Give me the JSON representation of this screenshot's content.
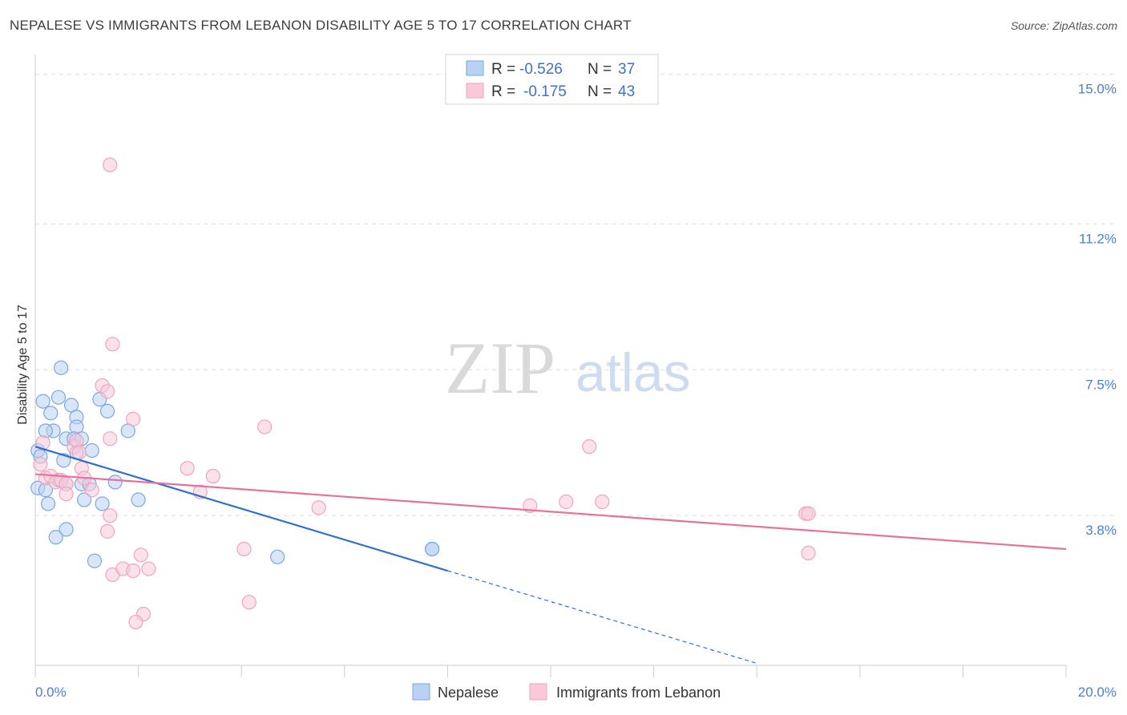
{
  "title": "NEPALESE VS IMMIGRANTS FROM LEBANON DISABILITY AGE 5 TO 17 CORRELATION CHART",
  "source": "Source: ZipAtlas.com",
  "watermark": {
    "zip": "ZIP",
    "atlas": "atlas"
  },
  "chart_data": {
    "type": "scatter",
    "title": "NEPALESE VS IMMIGRANTS FROM LEBANON DISABILITY AGE 5 TO 17 CORRELATION CHART",
    "xlabel": "",
    "ylabel": "Disability Age 5 to 17",
    "xlim": [
      0,
      20
    ],
    "ylim": [
      0,
      15.5
    ],
    "x_tick_labels": [
      "0.0%",
      "20.0%"
    ],
    "y_ticks": [
      3.8,
      7.5,
      11.2,
      15.0
    ],
    "y_tick_labels": [
      "3.8%",
      "7.5%",
      "11.2%",
      "15.0%"
    ],
    "grid": true,
    "legend": {
      "position": "top-center",
      "rows": [
        {
          "r_label": "R =",
          "r_value": "-0.526",
          "n_label": "N =",
          "n_value": "37"
        },
        {
          "r_label": "R =",
          "r_value": "-0.175",
          "n_label": "N =",
          "n_value": "43"
        }
      ]
    },
    "series": [
      {
        "name": "Nepalese",
        "color": "#7aa7e6",
        "fill": "#b9d1f2",
        "line_color": "#2f6fd0",
        "trend": {
          "x0": 0.0,
          "y0": 5.55,
          "x1": 8.0,
          "y1": 2.4,
          "dash_to_x": 14.0,
          "dash_to_y": 0.05
        },
        "points": [
          [
            0.05,
            5.45
          ],
          [
            0.1,
            5.3
          ],
          [
            0.05,
            4.5
          ],
          [
            0.2,
            4.45
          ],
          [
            0.25,
            4.1
          ],
          [
            0.15,
            6.7
          ],
          [
            0.3,
            6.4
          ],
          [
            0.35,
            5.95
          ],
          [
            0.2,
            5.95
          ],
          [
            0.45,
            6.8
          ],
          [
            0.5,
            7.55
          ],
          [
            0.7,
            6.6
          ],
          [
            0.8,
            6.3
          ],
          [
            0.8,
            6.05
          ],
          [
            0.6,
            5.75
          ],
          [
            0.75,
            5.75
          ],
          [
            0.9,
            5.75
          ],
          [
            0.55,
            5.2
          ],
          [
            0.8,
            5.4
          ],
          [
            0.45,
            4.7
          ],
          [
            0.6,
            4.6
          ],
          [
            0.9,
            4.6
          ],
          [
            1.05,
            4.6
          ],
          [
            1.1,
            5.45
          ],
          [
            0.95,
            4.2
          ],
          [
            1.3,
            4.1
          ],
          [
            1.25,
            6.75
          ],
          [
            1.4,
            6.45
          ],
          [
            1.8,
            5.95
          ],
          [
            1.55,
            4.65
          ],
          [
            2.0,
            4.2
          ],
          [
            0.6,
            3.45
          ],
          [
            0.4,
            3.25
          ],
          [
            1.15,
            2.65
          ],
          [
            4.7,
            2.75
          ],
          [
            7.7,
            2.95
          ],
          [
            7.7,
            2.95
          ]
        ]
      },
      {
        "name": "Immigrants from Lebanon",
        "color": "#f2a3bd",
        "fill": "#f8cad9",
        "line_color": "#e8709a",
        "trend": {
          "x0": 0.0,
          "y0": 4.85,
          "x1": 20.0,
          "y1": 2.95
        },
        "points": [
          [
            0.15,
            5.65
          ],
          [
            0.1,
            5.1
          ],
          [
            0.2,
            4.75
          ],
          [
            0.3,
            4.8
          ],
          [
            0.4,
            4.65
          ],
          [
            0.5,
            4.7
          ],
          [
            0.6,
            4.6
          ],
          [
            0.6,
            4.35
          ],
          [
            0.75,
            5.55
          ],
          [
            0.8,
            5.7
          ],
          [
            0.85,
            5.4
          ],
          [
            0.9,
            5.0
          ],
          [
            0.95,
            4.75
          ],
          [
            1.1,
            4.45
          ],
          [
            1.3,
            7.1
          ],
          [
            1.4,
            6.95
          ],
          [
            1.45,
            12.7
          ],
          [
            1.5,
            8.15
          ],
          [
            1.45,
            5.75
          ],
          [
            1.45,
            3.8
          ],
          [
            1.4,
            3.4
          ],
          [
            1.5,
            2.3
          ],
          [
            1.7,
            2.45
          ],
          [
            1.9,
            2.4
          ],
          [
            1.9,
            6.25
          ],
          [
            2.05,
            2.8
          ],
          [
            2.2,
            2.45
          ],
          [
            2.1,
            1.3
          ],
          [
            1.95,
            1.1
          ],
          [
            2.95,
            5.0
          ],
          [
            3.2,
            4.4
          ],
          [
            3.45,
            4.8
          ],
          [
            4.05,
            2.95
          ],
          [
            4.45,
            6.05
          ],
          [
            4.15,
            1.6
          ],
          [
            5.5,
            4.0
          ],
          [
            9.6,
            4.05
          ],
          [
            10.3,
            4.15
          ],
          [
            10.75,
            5.55
          ],
          [
            11.0,
            4.15
          ],
          [
            14.95,
            3.85
          ],
          [
            15.0,
            3.85
          ],
          [
            15.0,
            2.85
          ]
        ]
      }
    ]
  }
}
